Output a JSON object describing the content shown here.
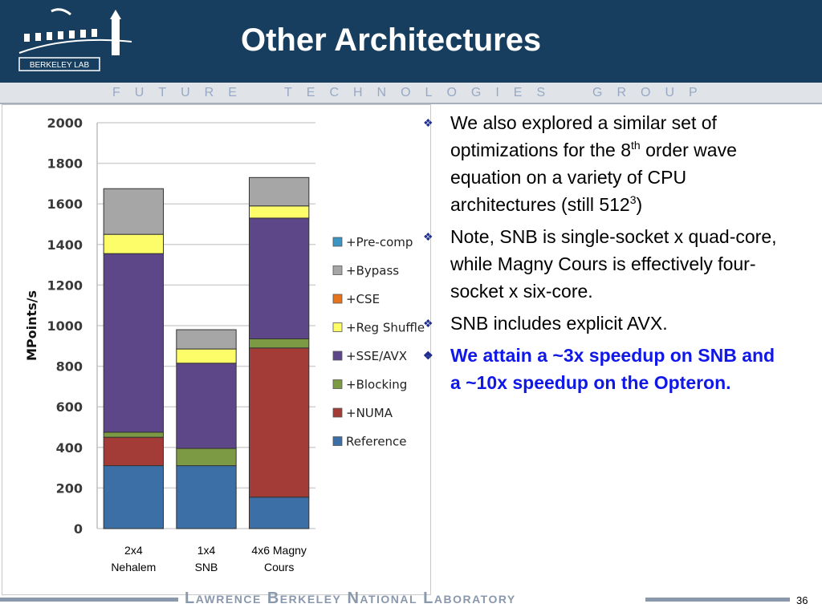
{
  "slide": {
    "title": "Other Architectures",
    "banner": {
      "word1": "FUTURE",
      "word2": "TECHNOLOGIES",
      "word3": "GROUP"
    },
    "logo_text": "BERKELEY LAB",
    "footer": "Lawrence Berkeley National Laboratory",
    "page_number": "36"
  },
  "bullets": [
    {
      "pre": "We also explored a similar set of optimizations for the 8",
      "sup": "th",
      "post": " order wave equation on a variety of CPU architectures (still 512",
      "sup2": "3",
      "post2": ")"
    },
    {
      "text": "Note, SNB is single-socket x quad-core, while Magny Cours is effectively four-socket x six-core."
    },
    {
      "text": "SNB includes explicit AVX."
    },
    {
      "text": "We attain a ~3x speedup on SNB and a ~10x speedup on the Opteron."
    }
  ],
  "colors": {
    "header_bg": "#173e5e",
    "emphasis": "#1018e8"
  },
  "chart_data": {
    "type": "bar",
    "stacked": true,
    "title": "",
    "xlabel": "",
    "ylabel": "MPoints/s",
    "ylim": [
      0,
      2000
    ],
    "yticks": [
      0,
      200,
      400,
      600,
      800,
      1000,
      1200,
      1400,
      1600,
      1800,
      2000
    ],
    "grid": true,
    "legend_position": "right",
    "categories": [
      {
        "line1": "2x4",
        "line2": "Nehalem"
      },
      {
        "line1": "1x4",
        "line2": "SNB"
      },
      {
        "line1": "4x6 Magny",
        "line2": "Cours"
      }
    ],
    "series": [
      {
        "name": "Reference",
        "color": "#3c6fa6",
        "values": [
          310,
          310,
          155
        ]
      },
      {
        "name": "+NUMA",
        "color": "#a33c36",
        "values": [
          140,
          0,
          735
        ]
      },
      {
        "name": "+Blocking",
        "color": "#7c9a43",
        "values": [
          25,
          85,
          45
        ]
      },
      {
        "name": "+SSE/AVX",
        "color": "#5e4789",
        "values": [
          880,
          420,
          595
        ]
      },
      {
        "name": "+Reg Shuffle",
        "color": "#fdfd6a",
        "values": [
          95,
          70,
          60
        ]
      },
      {
        "name": "+CSE",
        "color": "#e8731d",
        "values": [
          0,
          0,
          0
        ]
      },
      {
        "name": "+Bypass",
        "color": "#a6a6a6",
        "values": [
          225,
          95,
          140
        ]
      },
      {
        "name": "+Pre-comp",
        "color": "#3a95c2",
        "values": [
          0,
          0,
          0
        ]
      }
    ]
  }
}
